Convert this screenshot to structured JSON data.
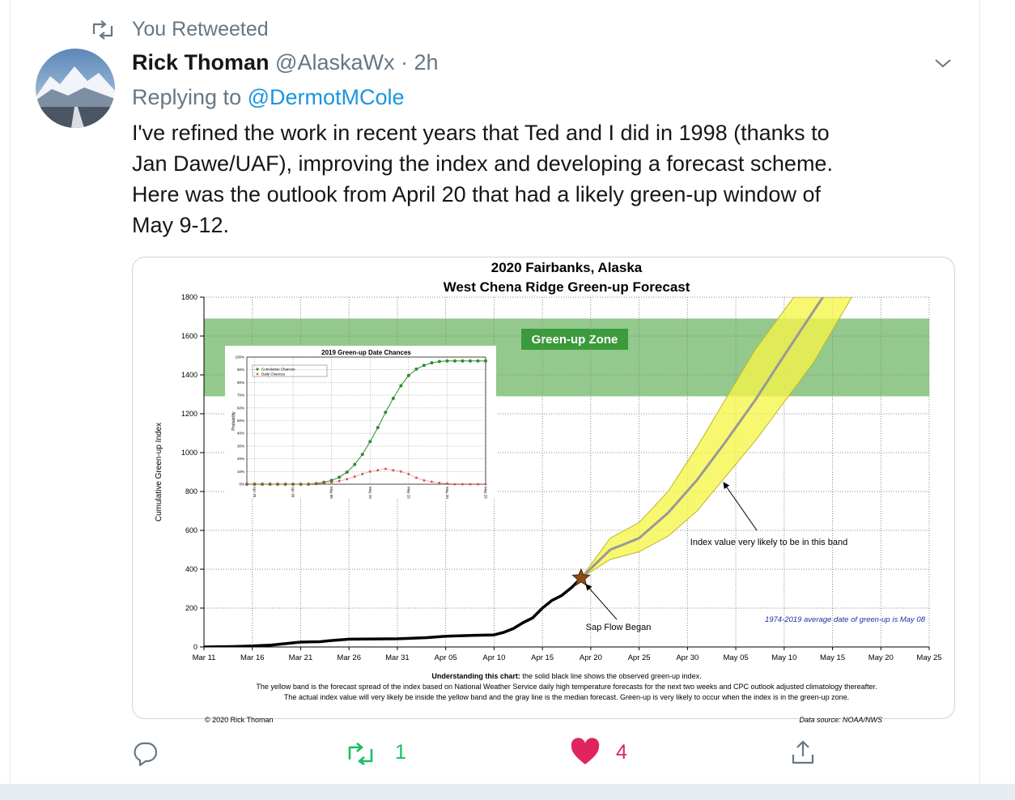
{
  "tweet": {
    "retweet_label": "You Retweeted",
    "name": "Rick Thoman",
    "handle": "@AlaskaWx",
    "separator": "·",
    "time": "2h",
    "replying_prefix": "Replying to",
    "reply_to": "@DermotMCole",
    "text_lines": [
      "I've refined the work in recent years that Ted and I did in 1998 (thanks to",
      "Jan Dawe/UAF), improving the index and developing a forecast scheme.",
      "Here was the outlook from April 20 that had a likely green-up window of",
      "May 9-12."
    ],
    "retweets": 1,
    "likes": 4
  },
  "chart_data": [
    {
      "type": "line",
      "title": "2020 Fairbanks, Alaska",
      "subtitle": "West Chena Ridge Green-up Forecast",
      "ylabel": "Cumulative Green-up Index",
      "xlim": [
        "Mar 11",
        "May 25"
      ],
      "xticks": [
        "Mar 11",
        "Mar 16",
        "Mar 21",
        "Mar 26",
        "Mar 31",
        "Apr 05",
        "Apr 10",
        "Apr 15",
        "Apr 20",
        "Apr 25",
        "Apr 30",
        "May 05",
        "May 10",
        "May 15",
        "May 20",
        "May 25"
      ],
      "ylim": [
        0,
        1800
      ],
      "yticks": [
        0,
        200,
        400,
        600,
        800,
        1000,
        1200,
        1400,
        1600,
        1800
      ],
      "grid": true,
      "zone": {
        "label": "Green-up Zone",
        "range": [
          1290,
          1690
        ],
        "color": "#93c98c",
        "label_color": "#3b9a3b"
      },
      "observed": {
        "color": "#000000",
        "x": [
          "Mar 11",
          "Mar 14",
          "Mar 16",
          "Mar 18",
          "Mar 19",
          "Mar 21",
          "Mar 23",
          "Mar 24",
          "Mar 26",
          "Mar 31",
          "Apr 03",
          "Apr 05",
          "Apr 08",
          "Apr 10",
          "Apr 11",
          "Apr 12",
          "Apr 13",
          "Apr 14",
          "Apr 15",
          "Apr 16",
          "Apr 17",
          "Apr 18",
          "Apr 19"
        ],
        "values": [
          0,
          2,
          5,
          10,
          15,
          25,
          27,
          32,
          40,
          42,
          48,
          55,
          60,
          62,
          75,
          95,
          125,
          150,
          200,
          240,
          265,
          305,
          355
        ]
      },
      "median": {
        "color": "#999999",
        "x": [
          "Apr 19",
          "Apr 22",
          "Apr 25",
          "Apr 28",
          "May 01",
          "May 04",
          "May 07",
          "May 10",
          "May 14"
        ],
        "values": [
          355,
          500,
          560,
          690,
          860,
          1060,
          1270,
          1500,
          1800
        ]
      },
      "band": {
        "color": "#f6f548",
        "edge_color": "#b9b72a",
        "label": "Index value very likely to be in this band",
        "upper": {
          "x": [
            "Apr 19",
            "Apr 22",
            "Apr 25",
            "Apr 28",
            "May 01",
            "May 04",
            "May 07",
            "May 11"
          ],
          "values": [
            355,
            560,
            640,
            800,
            1030,
            1280,
            1530,
            1800
          ]
        },
        "lower": {
          "x": [
            "Apr 19",
            "Apr 22",
            "Apr 25",
            "Apr 28",
            "May 01",
            "May 04",
            "May 07",
            "May 10",
            "May 13",
            "May 17"
          ],
          "values": [
            355,
            450,
            490,
            570,
            700,
            880,
            1060,
            1260,
            1460,
            1800
          ]
        }
      },
      "marker": {
        "x": "Apr 19",
        "value": 355,
        "label": "Sap Flow Began",
        "color": "#8b4a16"
      },
      "average_note": "1974-2019 average date of green-up is May 08",
      "footer_bold": "Understanding this chart:",
      "footer_lines": [
        " the solid black line shows the observed green-up index.",
        "The yellow band is the forecast spread of the index based on National Weather Service daily high temperature forecasts for the next two weeks and CPC outlook adjusted climatology thereafter.",
        "The actual index value will very likely be inside the yellow band and the gray line is the median forecast. Green-up is very likely to occur when the index is in the green-up zone."
      ],
      "copyright": "© 2020 Rick Thoman",
      "source": "Data source: NOAA/NWS"
    },
    {
      "type": "line",
      "title": "2019 Green-up Date Chances",
      "ylabel": "Probability",
      "xlim": [
        "Apr 24",
        "May 25"
      ],
      "xticks": [
        "Apr 25",
        "Apr 30",
        "May 05",
        "May 10",
        "May 15",
        "May 20",
        "May 25"
      ],
      "ylim": [
        0,
        100
      ],
      "yticks": [
        {
          "value": 0,
          "label": "0%"
        },
        {
          "value": 10,
          "label": "10%"
        },
        {
          "value": 20,
          "label": "20%"
        },
        {
          "value": 30,
          "label": "30%"
        },
        {
          "value": 40,
          "label": "40%"
        },
        {
          "value": 50,
          "label": "50%"
        },
        {
          "value": 60,
          "label": "60%"
        },
        {
          "value": 70,
          "label": "70%"
        },
        {
          "value": 80,
          "label": "80%"
        },
        {
          "value": 90,
          "label": "90%"
        },
        {
          "value": 100,
          "label": "100%"
        }
      ],
      "grid": true,
      "x": [
        "Apr 24",
        "Apr 25",
        "Apr 26",
        "Apr 27",
        "Apr 28",
        "Apr 29",
        "Apr 30",
        "May 01",
        "May 02",
        "May 03",
        "May 04",
        "May 05",
        "May 06",
        "May 07",
        "May 08",
        "May 09",
        "May 10",
        "May 11",
        "May 12",
        "May 13",
        "May 14",
        "May 15",
        "May 16",
        "May 17",
        "May 18",
        "May 19",
        "May 20",
        "May 21",
        "May 22",
        "May 23",
        "May 24",
        "May 25"
      ],
      "series": [
        {
          "name": "Cumulative Chances",
          "color": "#2e8b2e",
          "values": [
            0,
            0,
            0,
            0,
            0,
            0,
            0,
            0,
            0,
            0.5,
            1.5,
            3,
            5.5,
            9.5,
            15.5,
            23.5,
            33.5,
            44.5,
            56.5,
            67.5,
            77.5,
            85.5,
            90.5,
            93.5,
            95.5,
            96.5,
            97,
            97,
            97,
            97,
            97,
            97
          ]
        },
        {
          "name": "Daily Chances",
          "color": "#d24040",
          "values": [
            0,
            0,
            0,
            0,
            0,
            0,
            0,
            0,
            0,
            0.5,
            1,
            1.5,
            2.5,
            4,
            6,
            8,
            10,
            11,
            12,
            11,
            10,
            8,
            5,
            3,
            2,
            1,
            0.5,
            0,
            0,
            0,
            0,
            0
          ]
        }
      ]
    }
  ]
}
